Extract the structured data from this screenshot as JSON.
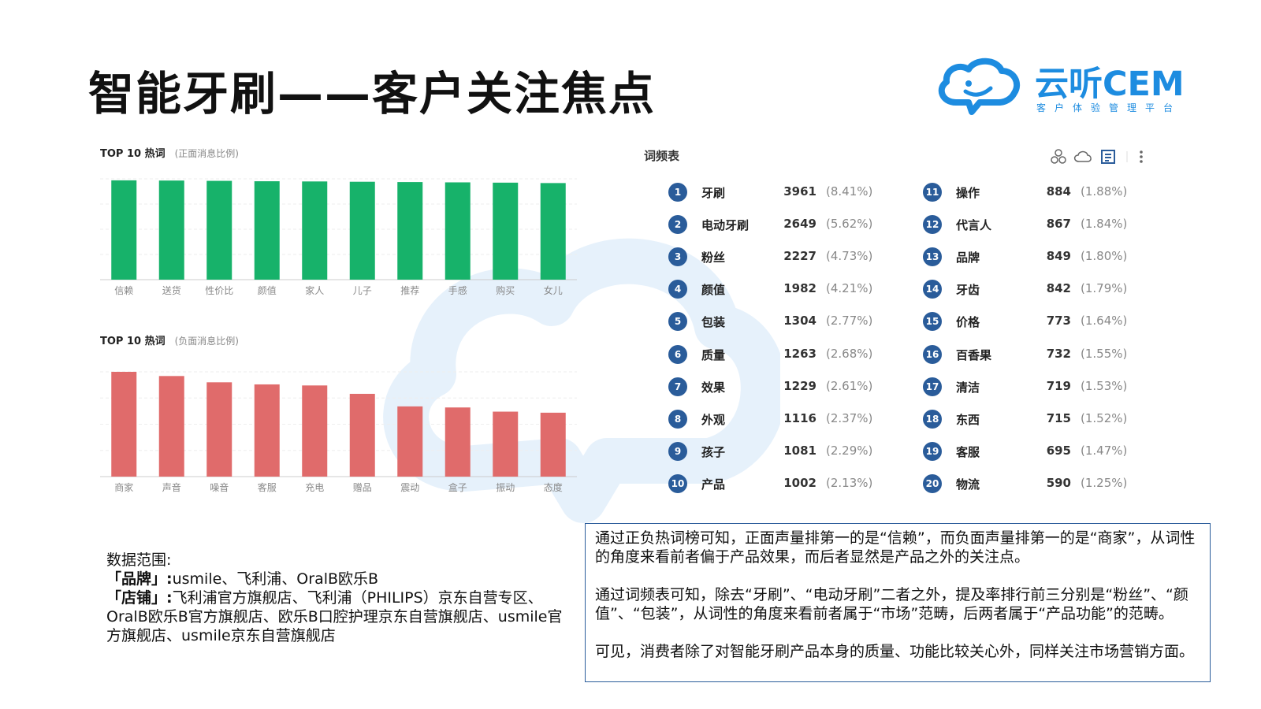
{
  "title": "智能牙刷——客户关注焦点",
  "logo": {
    "name": "云听CEM",
    "subtitle": "客户体验管理平台",
    "color": "#1d8ce0"
  },
  "chart_data": [
    {
      "type": "bar",
      "title": "TOP 10 热词",
      "subtitle": "(正面消息比例)",
      "categories": [
        "信赖",
        "送货",
        "性价比",
        "颜值",
        "家人",
        "儿子",
        "推荐",
        "手感",
        "购买",
        "女儿"
      ],
      "values": [
        98.5,
        98.3,
        98.0,
        97.6,
        97.4,
        97.1,
        96.8,
        96.5,
        96.2,
        95.8
      ],
      "ylim": [
        0,
        100
      ],
      "color": "#17b26a",
      "grid": true
    },
    {
      "type": "bar",
      "title": "TOP 10 热词",
      "subtitle": "(负面消息比例)",
      "categories": [
        "商家",
        "声音",
        "噪音",
        "客服",
        "充电",
        "赠品",
        "震动",
        "盒子",
        "振动",
        "态度"
      ],
      "values": [
        100,
        96,
        90,
        88,
        87,
        79,
        67,
        66,
        62,
        61
      ],
      "ylim": [
        0,
        100
      ],
      "color": "#e06b6b",
      "grid": true
    }
  ],
  "word_freq": {
    "title": "词频表",
    "items": [
      {
        "rank": "1",
        "word": "牙刷",
        "count": "3961",
        "pct": "(8.41%)"
      },
      {
        "rank": "2",
        "word": "电动牙刷",
        "count": "2649",
        "pct": "(5.62%)"
      },
      {
        "rank": "3",
        "word": "粉丝",
        "count": "2227",
        "pct": "(4.73%)"
      },
      {
        "rank": "4",
        "word": "颜值",
        "count": "1982",
        "pct": "(4.21%)"
      },
      {
        "rank": "5",
        "word": "包装",
        "count": "1304",
        "pct": "(2.77%)"
      },
      {
        "rank": "6",
        "word": "质量",
        "count": "1263",
        "pct": "(2.68%)"
      },
      {
        "rank": "7",
        "word": "效果",
        "count": "1229",
        "pct": "(2.61%)"
      },
      {
        "rank": "8",
        "word": "外观",
        "count": "1116",
        "pct": "(2.37%)"
      },
      {
        "rank": "9",
        "word": "孩子",
        "count": "1081",
        "pct": "(2.29%)"
      },
      {
        "rank": "10",
        "word": "产品",
        "count": "1002",
        "pct": "(2.13%)"
      },
      {
        "rank": "11",
        "word": "操作",
        "count": "884",
        "pct": "(1.88%)"
      },
      {
        "rank": "12",
        "word": "代言人",
        "count": "867",
        "pct": "(1.84%)"
      },
      {
        "rank": "13",
        "word": "品牌",
        "count": "849",
        "pct": "(1.80%)"
      },
      {
        "rank": "14",
        "word": "牙齿",
        "count": "842",
        "pct": "(1.79%)"
      },
      {
        "rank": "15",
        "word": "价格",
        "count": "773",
        "pct": "(1.64%)"
      },
      {
        "rank": "16",
        "word": "百香果",
        "count": "732",
        "pct": "(1.55%)"
      },
      {
        "rank": "17",
        "word": "清洁",
        "count": "719",
        "pct": "(1.53%)"
      },
      {
        "rank": "18",
        "word": "东西",
        "count": "715",
        "pct": "(1.52%)"
      },
      {
        "rank": "19",
        "word": "客服",
        "count": "695",
        "pct": "(1.47%)"
      },
      {
        "rank": "20",
        "word": "物流",
        "count": "590",
        "pct": "(1.25%)"
      }
    ]
  },
  "scope": {
    "heading": "数据范围:",
    "brand_label": "「品牌」:",
    "brand_text": "usmile、飞利浦、OralB欧乐B",
    "store_label": "「店铺」:",
    "store_text": "飞利浦官方旗舰店、飞利浦（PHILIPS）京东自营专区、OralB欧乐B官方旗舰店、欧乐B口腔护理京东自营旗舰店、usmile官方旗舰店、usmile京东自营旗舰店"
  },
  "summary": {
    "p1": "通过正负热词榜可知，正面声量排第一的是“信赖”，而负面声量排第一的是“商家”，从词性的角度来看前者偏于产品效果，而后者显然是产品之外的关注点。",
    "p2": "通过词频表可知，除去“牙刷”、“电动牙刷”二者之外，提及率排行前三分别是“粉丝”、“颜值”、“包装”，从词性的角度来看前者属于“市场”范畴，后两者属于“产品功能”的范畴。",
    "p3": "可见，消费者除了对智能牙刷产品本身的质量、功能比较关心外，同样关注市场营销方面。"
  }
}
